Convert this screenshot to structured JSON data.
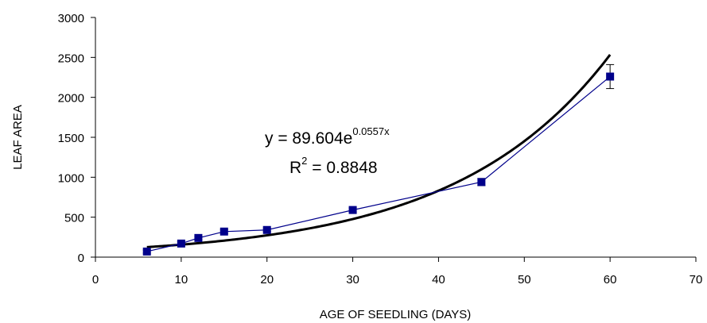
{
  "chart_data": {
    "type": "scatter",
    "title": "",
    "xlabel": "AGE OF SEEDLING (DAYS)",
    "ylabel": "LEAF AREA",
    "xlim": [
      0,
      70
    ],
    "ylim": [
      0,
      3000
    ],
    "xticks": [
      0,
      10,
      20,
      30,
      40,
      50,
      60,
      70
    ],
    "yticks": [
      0,
      500,
      1000,
      1500,
      2000,
      2500,
      3000
    ],
    "grid": false,
    "legend": "none",
    "series": [
      {
        "style": "line-with-square-markers",
        "color": "#00008B",
        "x": [
          6,
          10,
          12,
          15,
          20,
          30,
          45,
          60
        ],
        "y": [
          70,
          170,
          240,
          320,
          340,
          590,
          940,
          2260
        ],
        "error": [
          20,
          20,
          20,
          25,
          20,
          25,
          45,
          150
        ]
      }
    ],
    "trendline": {
      "type": "exponential",
      "color": "#000000",
      "a": 89.604,
      "b": 0.0557,
      "x_range": [
        6,
        60
      ]
    },
    "annotations": {
      "equation_main": "y = 89.604e",
      "equation_exp": "0.0557x",
      "r2_main": "R",
      "r2_sup": "2",
      "r2_value": " = 0.8848"
    }
  }
}
